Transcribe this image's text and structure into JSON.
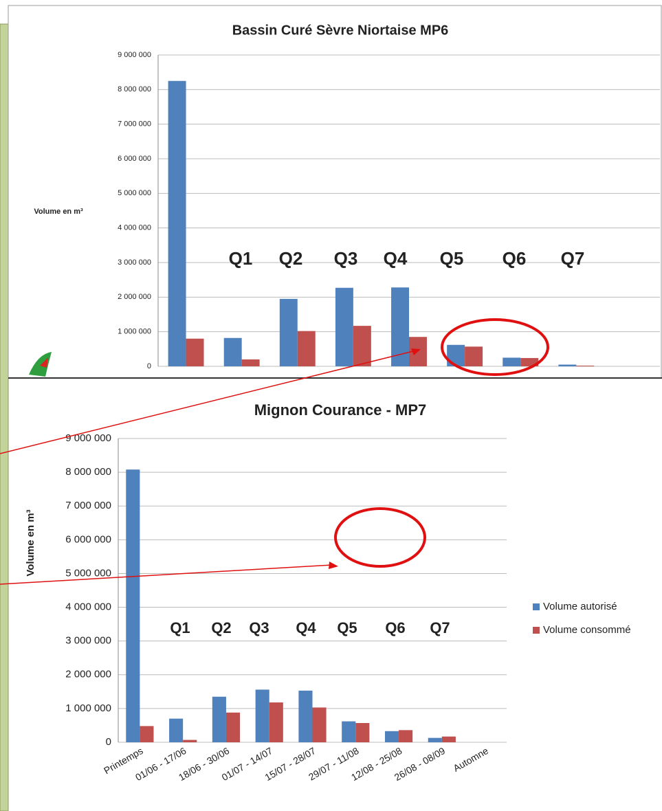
{
  "chart_data": [
    {
      "type": "bar",
      "title": "Bassin Curé Sèvre Niortaise MP6",
      "ylabel": "Volume en m³",
      "categories": [
        null,
        null,
        null,
        null,
        null,
        null,
        null,
        null,
        null
      ],
      "series": [
        {
          "color": "#4f81bd",
          "values": [
            8250000,
            820000,
            1950000,
            2270000,
            2280000,
            620000,
            250000,
            50000,
            null
          ]
        },
        {
          "color": "#c0504d",
          "values": [
            800000,
            200000,
            1020000,
            1170000,
            850000,
            570000,
            240000,
            20000,
            null
          ]
        }
      ],
      "ylim": [
        0,
        9000000
      ],
      "yticks": [
        {
          "value": 0,
          "label": "0"
        },
        {
          "value": 1000000,
          "label": "1 000 000"
        },
        {
          "value": 2000000,
          "label": "2 000 000"
        },
        {
          "value": 3000000,
          "label": "3 000 000"
        },
        {
          "value": 4000000,
          "label": "4 000 000"
        },
        {
          "value": 5000000,
          "label": "5 000 000"
        },
        {
          "value": 6000000,
          "label": "6 000 000"
        },
        {
          "value": 7000000,
          "label": "7 000 000"
        },
        {
          "value": 8000000,
          "label": "8 000 000"
        },
        {
          "value": 9000000,
          "label": "9 000 000"
        }
      ],
      "grid": true,
      "annotations": [
        "Q1",
        "Q2",
        "Q3",
        "Q4",
        "Q5",
        "Q6",
        "Q7"
      ]
    },
    {
      "type": "bar",
      "title": "Mignon Courance  - MP7",
      "ylabel": "Volume en m³",
      "categories": [
        "Printemps",
        "01/06 - 17/06",
        "18/06 - 30/06",
        "01/07 - 14/07",
        "15/07 - 28/07",
        "29/07 - 11/08",
        "12/08 - 25/08",
        "26/08 - 08/09",
        "Automne"
      ],
      "series": [
        {
          "name": "Volume autorisé",
          "color": "#4f81bd",
          "values": [
            8080000,
            700000,
            1350000,
            1560000,
            1530000,
            620000,
            330000,
            130000,
            null
          ]
        },
        {
          "name": "Volume consommé",
          "color": "#c0504d",
          "values": [
            480000,
            70000,
            880000,
            1180000,
            1030000,
            570000,
            360000,
            170000,
            null
          ]
        }
      ],
      "ylim": [
        0,
        9000000
      ],
      "yticks": [
        {
          "value": 0,
          "label": "0"
        },
        {
          "value": 1000000,
          "label": "1 000 000"
        },
        {
          "value": 2000000,
          "label": "2 000 000"
        },
        {
          "value": 3000000,
          "label": "3 000 000"
        },
        {
          "value": 4000000,
          "label": "4 000 000"
        },
        {
          "value": 5000000,
          "label": "5 000 000"
        },
        {
          "value": 6000000,
          "label": "6 000 000"
        },
        {
          "value": 7000000,
          "label": "7 000 000"
        },
        {
          "value": 8000000,
          "label": "8 000 000"
        },
        {
          "value": 9000000,
          "label": "9 000 000"
        }
      ],
      "grid": true,
      "legend": "right",
      "annotations": [
        "Q1",
        "Q2",
        "Q3",
        "Q4",
        "Q5",
        "Q6",
        "Q7"
      ]
    }
  ]
}
